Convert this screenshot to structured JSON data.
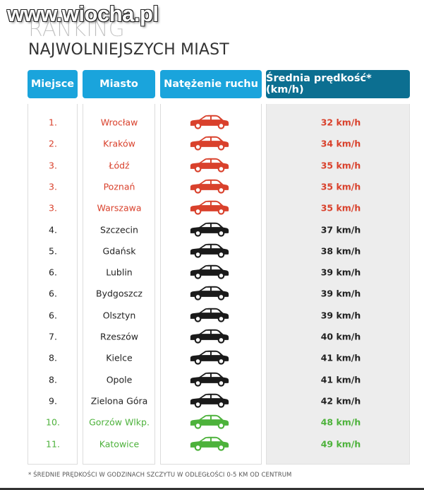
{
  "watermark": "www.wiocha.pl",
  "title": {
    "ranking": "RANKING",
    "main": "NAJWOLNIEJSZYCH MIAST"
  },
  "colors": {
    "header_blue": "#1aa4dc",
    "header_dark": "#0c6f91",
    "red": "#d9412c",
    "green": "#4db23b",
    "black": "#1a1a1a"
  },
  "headers": {
    "place": "Miejsce",
    "city": "Miasto",
    "traffic": "Natężenie ruchu",
    "speed": "Średnia prędkość* (km/h)"
  },
  "rows": [
    {
      "place": "1.",
      "city": "Wrocław",
      "speed": "32 km/h",
      "level": "red",
      "icon": "car-red-icon"
    },
    {
      "place": "2.",
      "city": "Kraków",
      "speed": "34 km/h",
      "level": "red",
      "icon": "car-red-icon"
    },
    {
      "place": "3.",
      "city": "Łódź",
      "speed": "35 km/h",
      "level": "red",
      "icon": "car-red-icon"
    },
    {
      "place": "3.",
      "city": "Poznań",
      "speed": "35 km/h",
      "level": "red",
      "icon": "car-red-icon"
    },
    {
      "place": "3.",
      "city": "Warszawa",
      "speed": "35 km/h",
      "level": "red",
      "icon": "car-red-icon"
    },
    {
      "place": "4.",
      "city": "Szczecin",
      "speed": "37 km/h",
      "level": "black",
      "icon": "car-black-icon"
    },
    {
      "place": "5.",
      "city": "Gdańsk",
      "speed": "38 km/h",
      "level": "black",
      "icon": "car-black-icon"
    },
    {
      "place": "6.",
      "city": "Lublin",
      "speed": "39 km/h",
      "level": "black",
      "icon": "car-black-icon"
    },
    {
      "place": "6.",
      "city": "Bydgoszcz",
      "speed": "39 km/h",
      "level": "black",
      "icon": "car-black-icon"
    },
    {
      "place": "6.",
      "city": "Olsztyn",
      "speed": "39 km/h",
      "level": "black",
      "icon": "car-black-icon"
    },
    {
      "place": "7.",
      "city": "Rzeszów",
      "speed": "40 km/h",
      "level": "black",
      "icon": "car-black-icon"
    },
    {
      "place": "8.",
      "city": "Kielce",
      "speed": "41 km/h",
      "level": "black",
      "icon": "car-black-icon"
    },
    {
      "place": "8.",
      "city": "Opole",
      "speed": "41 km/h",
      "level": "black",
      "icon": "car-black-icon"
    },
    {
      "place": "9.",
      "city": "Zielona Góra",
      "speed": "42 km/h",
      "level": "black",
      "icon": "car-black-icon"
    },
    {
      "place": "10.",
      "city": "Gorzów Wlkp.",
      "speed": "48 km/h",
      "level": "green",
      "icon": "car-green-icon"
    },
    {
      "place": "11.",
      "city": "Katowice",
      "speed": "49 km/h",
      "level": "green",
      "icon": "car-green-icon"
    }
  ],
  "footnote": "* ŚREDNIE PRĘDKOŚCI W GODZINACH SZCZYTU W ODLEGŁOŚCI 0-5 KM OD CENTRUM"
}
